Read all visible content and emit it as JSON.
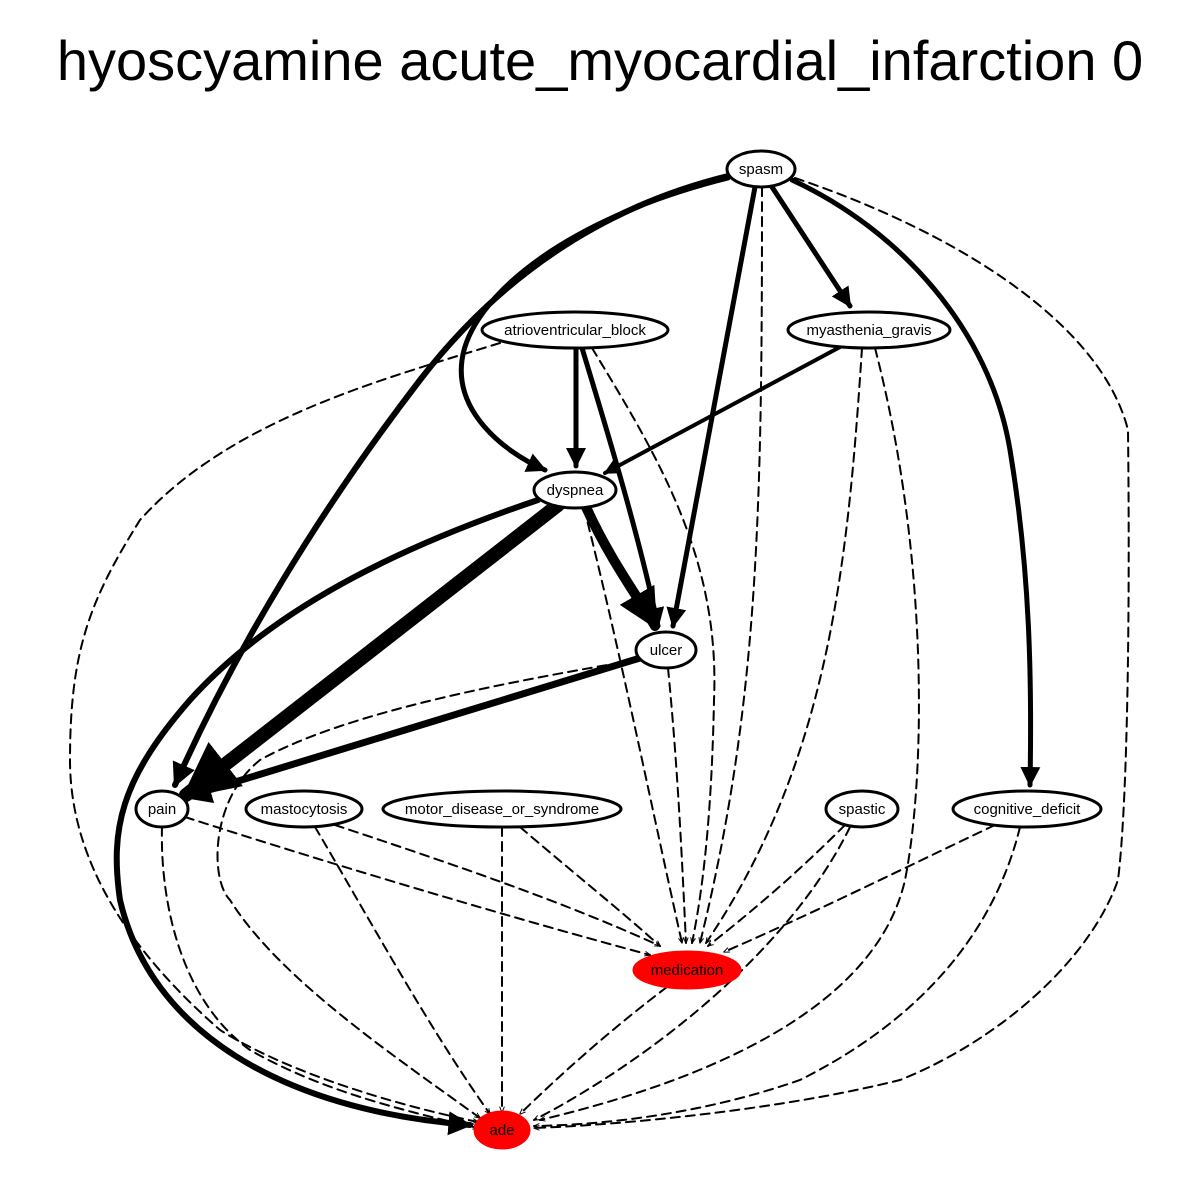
{
  "title": "hyoscyamine acute_myocardial_infarction 0",
  "colors": {
    "highlight": "#ff0000",
    "node_fill": "#ffffff",
    "stroke": "#000000"
  },
  "nodes": [
    {
      "id": "spasm",
      "label": "spasm",
      "highlight": false
    },
    {
      "id": "atrioventricular_block",
      "label": "atrioventricular_block",
      "highlight": false
    },
    {
      "id": "myasthenia_gravis",
      "label": "myasthenia_gravis",
      "highlight": false
    },
    {
      "id": "dyspnea",
      "label": "dyspnea",
      "highlight": false
    },
    {
      "id": "ulcer",
      "label": "ulcer",
      "highlight": false
    },
    {
      "id": "pain",
      "label": "pain",
      "highlight": false
    },
    {
      "id": "mastocytosis",
      "label": "mastocytosis",
      "highlight": false
    },
    {
      "id": "motor_disease_or_syndrome",
      "label": "motor_disease_or_syndrome",
      "highlight": false
    },
    {
      "id": "spastic",
      "label": "spastic",
      "highlight": false
    },
    {
      "id": "cognitive_deficit",
      "label": "cognitive_deficit",
      "highlight": false
    },
    {
      "id": "medication",
      "label": "medication",
      "highlight": true
    },
    {
      "id": "ade",
      "label": "ade",
      "highlight": true
    }
  ],
  "edges": [
    {
      "from": "spasm",
      "to": "pain",
      "style": "solid"
    },
    {
      "from": "spasm",
      "to": "dyspnea",
      "style": "solid"
    },
    {
      "from": "spasm",
      "to": "myasthenia_gravis",
      "style": "solid"
    },
    {
      "from": "spasm",
      "to": "ulcer",
      "style": "solid"
    },
    {
      "from": "spasm",
      "to": "cognitive_deficit",
      "style": "solid"
    },
    {
      "from": "spasm",
      "to": "medication",
      "style": "dashed"
    },
    {
      "from": "spasm",
      "to": "ade",
      "style": "dashed"
    },
    {
      "from": "atrioventricular_block",
      "to": "dyspnea",
      "style": "solid"
    },
    {
      "from": "atrioventricular_block",
      "to": "ulcer",
      "style": "solid"
    },
    {
      "from": "atrioventricular_block",
      "to": "medication",
      "style": "dashed"
    },
    {
      "from": "atrioventricular_block",
      "to": "ade",
      "style": "dashed"
    },
    {
      "from": "myasthenia_gravis",
      "to": "dyspnea",
      "style": "solid"
    },
    {
      "from": "myasthenia_gravis",
      "to": "medication",
      "style": "dashed"
    },
    {
      "from": "myasthenia_gravis",
      "to": "ade",
      "style": "dashed"
    },
    {
      "from": "dyspnea",
      "to": "pain",
      "style": "solid"
    },
    {
      "from": "dyspnea",
      "to": "ulcer",
      "style": "solid"
    },
    {
      "from": "dyspnea",
      "to": "ade",
      "style": "solid"
    },
    {
      "from": "dyspnea",
      "to": "medication",
      "style": "dashed"
    },
    {
      "from": "ulcer",
      "to": "pain",
      "style": "solid"
    },
    {
      "from": "ulcer",
      "to": "medication",
      "style": "dashed"
    },
    {
      "from": "ulcer",
      "to": "ade",
      "style": "dashed"
    },
    {
      "from": "pain",
      "to": "medication",
      "style": "dashed"
    },
    {
      "from": "pain",
      "to": "ade",
      "style": "dashed"
    },
    {
      "from": "mastocytosis",
      "to": "medication",
      "style": "dashed"
    },
    {
      "from": "mastocytosis",
      "to": "ade",
      "style": "dashed"
    },
    {
      "from": "motor_disease_or_syndrome",
      "to": "medication",
      "style": "dashed"
    },
    {
      "from": "motor_disease_or_syndrome",
      "to": "ade",
      "style": "dashed"
    },
    {
      "from": "spastic",
      "to": "medication",
      "style": "dashed"
    },
    {
      "from": "spastic",
      "to": "ade",
      "style": "dashed"
    },
    {
      "from": "cognitive_deficit",
      "to": "medication",
      "style": "dashed"
    },
    {
      "from": "cognitive_deficit",
      "to": "ade",
      "style": "dashed"
    },
    {
      "from": "medication",
      "to": "ade",
      "style": "dashed"
    }
  ]
}
